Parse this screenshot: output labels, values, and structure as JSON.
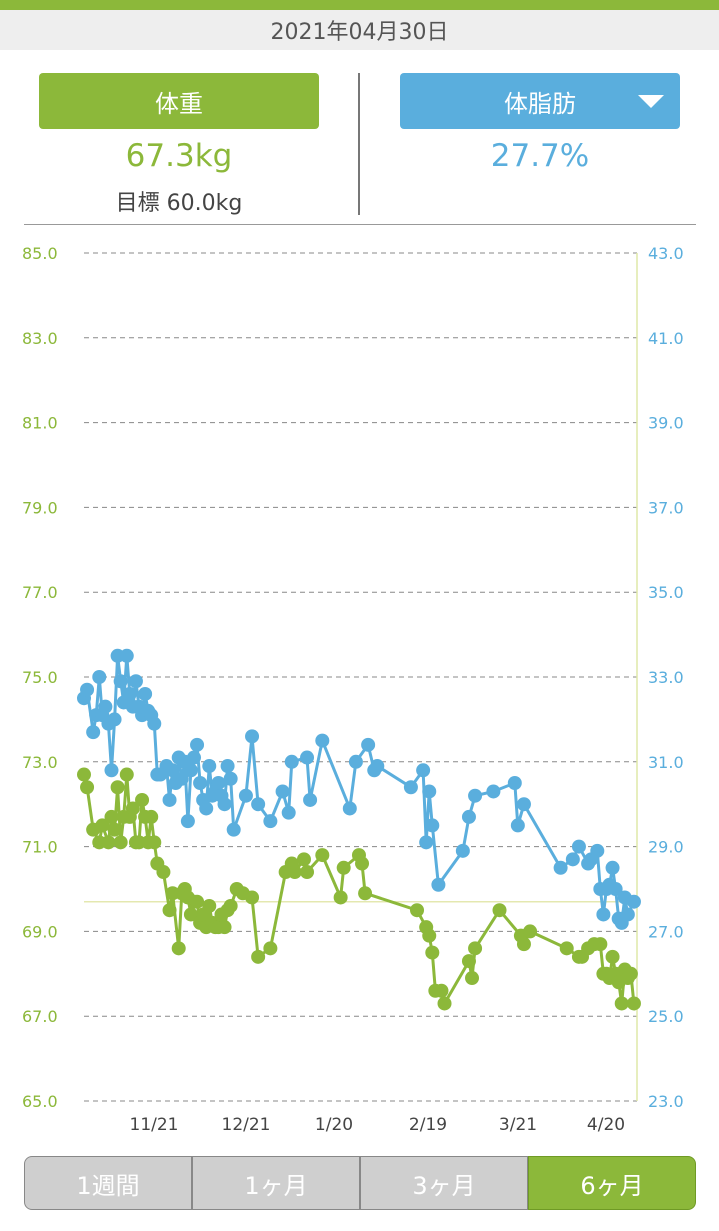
{
  "date": "2021年04月30日",
  "weight": {
    "label": "体重",
    "value": "67.3kg",
    "goal": "目標 60.0kg"
  },
  "bodyfat": {
    "label": "体脂肪",
    "value": "27.7%"
  },
  "tabs": [
    {
      "label": "1週間",
      "active": false
    },
    {
      "label": "1ヶ月",
      "active": false
    },
    {
      "label": "3ヶ月",
      "active": false
    },
    {
      "label": "6ヶ月",
      "active": true
    }
  ],
  "colors": {
    "weight": "#8cb83a",
    "bodyfat": "#5aaedd"
  },
  "chart_data": {
    "type": "line",
    "x_ticks": [
      "11/21",
      "12/21",
      "1/20",
      "2/19",
      "3/21",
      "4/20"
    ],
    "y_left": {
      "ticks": [
        "85.0",
        "83.0",
        "81.0",
        "79.0",
        "77.0",
        "75.0",
        "73.0",
        "71.0",
        "69.0",
        "67.0",
        "65.0"
      ],
      "range": [
        65,
        85
      ]
    },
    "y_right": {
      "ticks": [
        "43.0",
        "41.0",
        "39.0",
        "37.0",
        "35.0",
        "33.0",
        "31.0",
        "29.0",
        "27.0",
        "25.0",
        "23.0"
      ],
      "range": [
        23,
        43
      ]
    },
    "grid": true,
    "reference_line_weight": 69.7,
    "x_range_days": [
      0,
      181
    ],
    "series": [
      {
        "axis": "left",
        "points": [
          [
            0,
            72.7
          ],
          [
            1,
            72.4
          ],
          [
            3,
            71.4
          ],
          [
            5,
            71.1
          ],
          [
            6,
            71.5
          ],
          [
            8,
            71.1
          ],
          [
            9,
            71.7
          ],
          [
            10,
            71.4
          ],
          [
            11,
            72.4
          ],
          [
            12,
            71.1
          ],
          [
            13,
            71.7
          ],
          [
            14,
            72.7
          ],
          [
            15,
            71.7
          ],
          [
            16,
            71.9
          ],
          [
            17,
            71.1
          ],
          [
            18,
            71.1
          ],
          [
            19,
            72.1
          ],
          [
            20,
            71.7
          ],
          [
            21,
            71.1
          ],
          [
            22,
            71.7
          ],
          [
            23,
            71.1
          ],
          [
            24,
            70.6
          ],
          [
            26,
            70.4
          ],
          [
            28,
            69.5
          ],
          [
            29,
            69.9
          ],
          [
            31,
            68.6
          ],
          [
            32,
            69.9
          ],
          [
            33,
            70.0
          ],
          [
            34,
            69.8
          ],
          [
            35,
            69.4
          ],
          [
            36,
            69.7
          ],
          [
            37,
            69.7
          ],
          [
            38,
            69.2
          ],
          [
            39,
            69.4
          ],
          [
            40,
            69.1
          ],
          [
            41,
            69.6
          ],
          [
            42,
            69.2
          ],
          [
            43,
            69.1
          ],
          [
            44,
            69.1
          ],
          [
            45,
            69.4
          ],
          [
            46,
            69.1
          ],
          [
            47,
            69.5
          ],
          [
            48,
            69.6
          ],
          [
            50,
            70.0
          ],
          [
            52,
            69.9
          ],
          [
            55,
            69.8
          ],
          [
            57,
            68.4
          ],
          [
            61,
            68.6
          ],
          [
            66,
            70.4
          ],
          [
            68,
            70.6
          ],
          [
            69,
            70.4
          ],
          [
            72,
            70.7
          ],
          [
            73,
            70.4
          ],
          [
            78,
            70.8
          ],
          [
            84,
            69.8
          ],
          [
            85,
            70.5
          ],
          [
            90,
            70.8
          ],
          [
            91,
            70.6
          ],
          [
            92,
            69.9
          ],
          [
            109,
            69.5
          ],
          [
            112,
            69.1
          ],
          [
            113,
            68.9
          ],
          [
            114,
            68.5
          ],
          [
            115,
            67.6
          ],
          [
            117,
            67.6
          ],
          [
            118,
            67.3
          ],
          [
            126,
            68.3
          ],
          [
            127,
            67.9
          ],
          [
            128,
            68.6
          ],
          [
            136,
            69.5
          ],
          [
            143,
            68.9
          ],
          [
            144,
            68.7
          ],
          [
            146,
            69.0
          ],
          [
            158,
            68.6
          ],
          [
            162,
            68.4
          ],
          [
            163,
            68.4
          ],
          [
            165,
            68.6
          ],
          [
            167,
            68.7
          ],
          [
            169,
            68.7
          ],
          [
            170,
            68.0
          ],
          [
            171,
            68.0
          ],
          [
            172,
            67.9
          ],
          [
            173,
            68.4
          ],
          [
            174,
            68.0
          ],
          [
            175,
            67.8
          ],
          [
            176,
            67.3
          ],
          [
            177,
            68.1
          ],
          [
            178,
            67.9
          ],
          [
            179,
            68.0
          ],
          [
            180,
            67.3
          ]
        ]
      },
      {
        "axis": "right",
        "points": [
          [
            0,
            32.5
          ],
          [
            1,
            32.7
          ],
          [
            3,
            31.7
          ],
          [
            4,
            32.1
          ],
          [
            5,
            33.0
          ],
          [
            6,
            32.1
          ],
          [
            7,
            32.3
          ],
          [
            8,
            31.9
          ],
          [
            9,
            30.8
          ],
          [
            10,
            32.0
          ],
          [
            11,
            33.5
          ],
          [
            12,
            32.9
          ],
          [
            13,
            32.4
          ],
          [
            14,
            33.5
          ],
          [
            15,
            32.6
          ],
          [
            16,
            32.3
          ],
          [
            17,
            32.9
          ],
          [
            18,
            32.3
          ],
          [
            19,
            32.1
          ],
          [
            20,
            32.6
          ],
          [
            21,
            32.2
          ],
          [
            22,
            32.1
          ],
          [
            23,
            31.9
          ],
          [
            24,
            30.7
          ],
          [
            25,
            30.7
          ],
          [
            27,
            30.9
          ],
          [
            28,
            30.1
          ],
          [
            29,
            30.8
          ],
          [
            30,
            30.5
          ],
          [
            31,
            31.1
          ],
          [
            32,
            30.6
          ],
          [
            33,
            31.0
          ],
          [
            34,
            29.6
          ],
          [
            35,
            30.8
          ],
          [
            36,
            31.1
          ],
          [
            37,
            31.4
          ],
          [
            38,
            30.5
          ],
          [
            39,
            30.1
          ],
          [
            40,
            29.9
          ],
          [
            41,
            30.9
          ],
          [
            42,
            30.2
          ],
          [
            43,
            30.3
          ],
          [
            44,
            30.5
          ],
          [
            45,
            30.2
          ],
          [
            46,
            30.0
          ],
          [
            47,
            30.9
          ],
          [
            48,
            30.6
          ],
          [
            49,
            29.4
          ],
          [
            53,
            30.2
          ],
          [
            55,
            31.6
          ],
          [
            57,
            30.0
          ],
          [
            61,
            29.6
          ],
          [
            65,
            30.3
          ],
          [
            67,
            29.8
          ],
          [
            68,
            31.0
          ],
          [
            73,
            31.1
          ],
          [
            74,
            30.1
          ],
          [
            78,
            31.5
          ],
          [
            87,
            29.9
          ],
          [
            89,
            31.0
          ],
          [
            93,
            31.4
          ],
          [
            95,
            30.8
          ],
          [
            96,
            30.9
          ],
          [
            107,
            30.4
          ],
          [
            111,
            30.8
          ],
          [
            112,
            29.1
          ],
          [
            113,
            30.3
          ],
          [
            114,
            29.5
          ],
          [
            116,
            28.1
          ],
          [
            124,
            28.9
          ],
          [
            126,
            29.7
          ],
          [
            128,
            30.2
          ],
          [
            134,
            30.3
          ],
          [
            141,
            30.5
          ],
          [
            142,
            29.5
          ],
          [
            144,
            30.0
          ],
          [
            156,
            28.5
          ],
          [
            160,
            28.7
          ],
          [
            162,
            29.0
          ],
          [
            165,
            28.6
          ],
          [
            166,
            28.7
          ],
          [
            168,
            28.9
          ],
          [
            169,
            28.0
          ],
          [
            170,
            27.4
          ],
          [
            171,
            28.0
          ],
          [
            172,
            28.1
          ],
          [
            173,
            28.5
          ],
          [
            174,
            28.0
          ],
          [
            175,
            27.3
          ],
          [
            176,
            27.2
          ],
          [
            177,
            27.8
          ],
          [
            178,
            27.4
          ],
          [
            180,
            27.7
          ]
        ]
      }
    ]
  }
}
